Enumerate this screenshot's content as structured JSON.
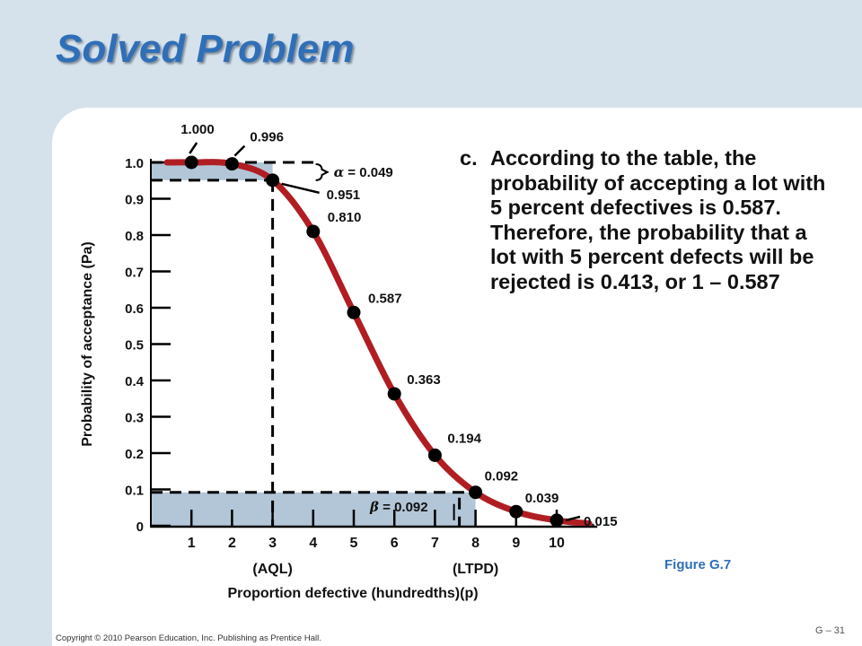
{
  "slide": {
    "title": "Solved Problem",
    "bullet_marker": "c.",
    "bullet_text": "According to the table, the probability of accepting a lot with 5 percent defectives is 0.587. Therefore, the probability that a lot with 5 percent defects will be rejected is 0.413, or 1 – 0.587",
    "figure_caption": "Figure G.7",
    "copyright": "Copyright © 2010 Pearson Education, Inc. Publishing as Prentice Hall.",
    "page_number": "G – 31"
  },
  "chart_data": {
    "type": "line",
    "title": "",
    "ylabel": "Probability of acceptance (Pa)",
    "xlabel": "Proportion defective (hundredths)(p)",
    "xlim": [
      0,
      11
    ],
    "ylim": [
      0,
      1.0
    ],
    "x_ticks": [
      "1",
      "2",
      "3",
      "4",
      "5",
      "6",
      "7",
      "8",
      "9",
      "10"
    ],
    "y_ticks": [
      "0",
      "0.1",
      "0.2",
      "0.3",
      "0.4",
      "0.5",
      "0.6",
      "0.7",
      "0.8",
      "0.9",
      "1.0"
    ],
    "x_tick_values": [
      1,
      2,
      3,
      4,
      5,
      6,
      7,
      8,
      9,
      10
    ],
    "y_tick_values": [
      0,
      0.1,
      0.2,
      0.3,
      0.4,
      0.5,
      0.6,
      0.7,
      0.8,
      0.9,
      1.0
    ],
    "points": [
      {
        "x": 1,
        "y": 1.0,
        "label": "1.000"
      },
      {
        "x": 2,
        "y": 0.996,
        "label": "0.996"
      },
      {
        "x": 3,
        "y": 0.951,
        "label": "0.951"
      },
      {
        "x": 4,
        "y": 0.81,
        "label": "0.810"
      },
      {
        "x": 5,
        "y": 0.587,
        "label": "0.587"
      },
      {
        "x": 6,
        "y": 0.363,
        "label": "0.363"
      },
      {
        "x": 7,
        "y": 0.194,
        "label": "0.194"
      },
      {
        "x": 8,
        "y": 0.092,
        "label": "0.092"
      },
      {
        "x": 9,
        "y": 0.039,
        "label": "0.039"
      },
      {
        "x": 10,
        "y": 0.015,
        "label": "0.015"
      }
    ],
    "aql_label": "(AQL)",
    "ltpd_label": "(LTPD)",
    "aql_x": 3,
    "ltpd_x": 8,
    "alpha_label": " = 0.049",
    "beta_label": " = 0.092",
    "alpha_symbol": "α",
    "beta_symbol": "β",
    "colors": {
      "curve": "#b01e23",
      "shade": "#b3c6d8",
      "points": "#000000"
    }
  }
}
